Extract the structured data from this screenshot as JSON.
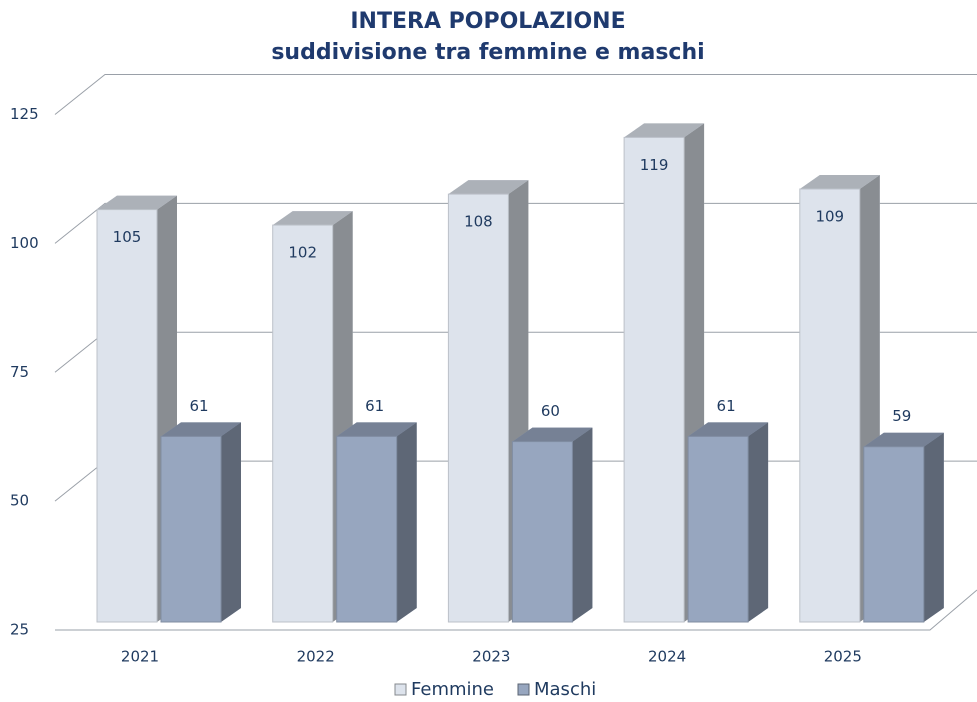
{
  "chart_data": {
    "type": "bar",
    "title": "INTERA POPOLAZIONE",
    "subtitle": "suddivisione tra femmine e maschi",
    "categories": [
      "2021",
      "2022",
      "2023",
      "2024",
      "2025"
    ],
    "series": [
      {
        "name": "Femmine",
        "color": "#dde3ec",
        "values": [
          105,
          102,
          108,
          119,
          109
        ]
      },
      {
        "name": "Maschi",
        "color": "#97a6bf",
        "values": [
          61,
          61,
          60,
          61,
          59
        ]
      }
    ],
    "ylim": [
      25,
      125
    ],
    "yticks": [
      25,
      50,
      75,
      100,
      125
    ],
    "grid": true,
    "legend": "bottom"
  }
}
